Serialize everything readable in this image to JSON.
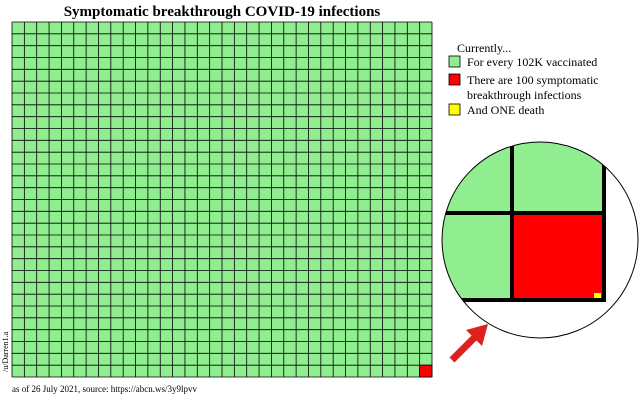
{
  "title": "Symptomatic breakthrough COVID-19 infections",
  "legend": {
    "heading": "Currently...",
    "items": [
      {
        "color": "#90ee90",
        "lines": [
          "For every 102K vaccinated"
        ]
      },
      {
        "color": "#ff0000",
        "lines": [
          "There are 100 symptomatic",
          "breakthrough infections"
        ]
      },
      {
        "color": "#ffff00",
        "lines": [
          "And ONE death"
        ]
      }
    ]
  },
  "credit": "/u/Darren1.a",
  "source": "as of 26 July 2021, source: https://abcn.ws/3y9lpvv"
}
